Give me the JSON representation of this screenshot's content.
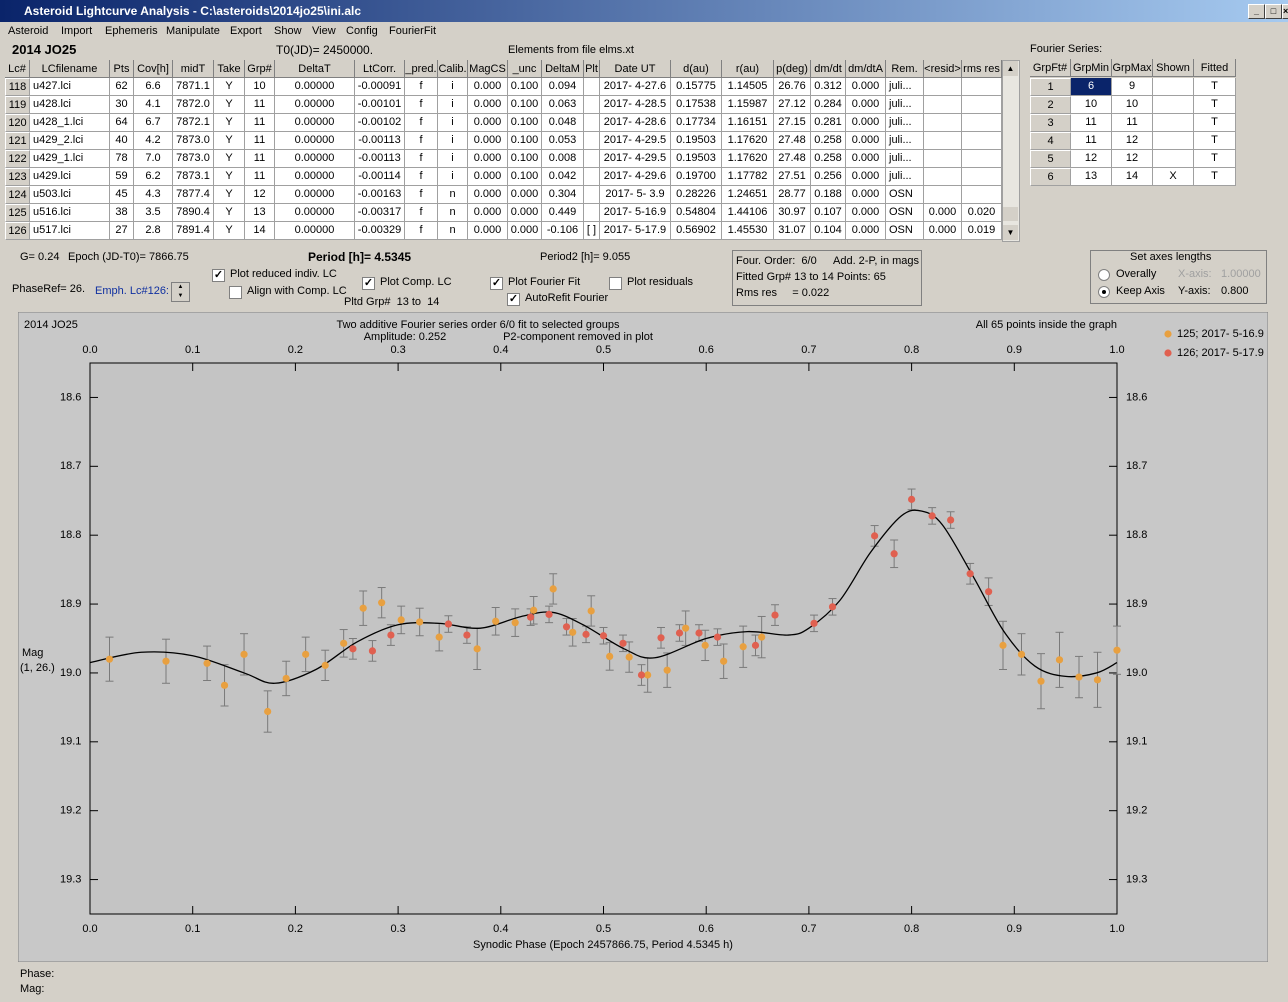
{
  "window": {
    "title": "Asteroid Lightcurve Analysis - C:\\asteroids\\2014jo25\\ini.alc"
  },
  "menu": [
    "Asteroid",
    "Import",
    "Ephemeris",
    "Manipulate",
    "Export",
    "Show",
    "View",
    "Config",
    "FourierFit"
  ],
  "header": {
    "object": "2014 JO25",
    "t0": "T0(JD)= 2450000.",
    "elements": "Elements from file elms.xt",
    "fourier_title": "Fourier Series:"
  },
  "table": {
    "columns": [
      "Lc#",
      "LCfilename",
      "Pts",
      "Cov[h]",
      "midT",
      "Take",
      "Grp#",
      "DeltaT",
      "LtCorr.",
      "_pred.",
      "Calib.",
      "MagCS",
      "_unc",
      "DeltaM",
      "Plt",
      "Date UT",
      "d(au)",
      "r(au)",
      "p(deg)",
      "dm/dt",
      "dm/dtA",
      "Rem.",
      "<resid>",
      "rms res"
    ],
    "rows": [
      [
        "118",
        "u427.lci",
        "62",
        "6.6",
        "7871.1",
        "Y",
        "10",
        "0.00000",
        "-0.00091",
        "f",
        "i",
        "0.000",
        "0.100",
        "0.094",
        null,
        "2017- 4-27.6",
        "0.15775",
        "1.14505",
        "26.76",
        "0.312",
        "0.000",
        "juli...",
        null,
        null
      ],
      [
        "119",
        "u428.lci",
        "30",
        "4.1",
        "7872.0",
        "Y",
        "11",
        "0.00000",
        "-0.00101",
        "f",
        "i",
        "0.000",
        "0.100",
        "0.063",
        null,
        "2017- 4-28.5",
        "0.17538",
        "1.15987",
        "27.12",
        "0.284",
        "0.000",
        "juli...",
        null,
        null
      ],
      [
        "120",
        "u428_1.lci",
        "64",
        "6.7",
        "7872.1",
        "Y",
        "11",
        "0.00000",
        "-0.00102",
        "f",
        "i",
        "0.000",
        "0.100",
        "0.048",
        null,
        "2017- 4-28.6",
        "0.17734",
        "1.16151",
        "27.15",
        "0.281",
        "0.000",
        "juli...",
        null,
        null
      ],
      [
        "121",
        "u429_2.lci",
        "40",
        "4.2",
        "7873.0",
        "Y",
        "11",
        "0.00000",
        "-0.00113",
        "f",
        "i",
        "0.000",
        "0.100",
        "0.053",
        null,
        "2017- 4-29.5",
        "0.19503",
        "1.17620",
        "27.48",
        "0.258",
        "0.000",
        "juli...",
        null,
        null
      ],
      [
        "122",
        "u429_1.lci",
        "78",
        "7.0",
        "7873.0",
        "Y",
        "11",
        "0.00000",
        "-0.00113",
        "f",
        "i",
        "0.000",
        "0.100",
        "0.008",
        null,
        "2017- 4-29.5",
        "0.19503",
        "1.17620",
        "27.48",
        "0.258",
        "0.000",
        "juli...",
        null,
        null
      ],
      [
        "123",
        "u429.lci",
        "59",
        "6.2",
        "7873.1",
        "Y",
        "11",
        "0.00000",
        "-0.00114",
        "f",
        "i",
        "0.000",
        "0.100",
        "0.042",
        null,
        "2017- 4-29.6",
        "0.19700",
        "1.17782",
        "27.51",
        "0.256",
        "0.000",
        "juli...",
        null,
        null
      ],
      [
        "124",
        "u503.lci",
        "45",
        "4.3",
        "7877.4",
        "Y",
        "12",
        "0.00000",
        "-0.00163",
        "f",
        "n",
        "0.000",
        "0.000",
        "0.304",
        null,
        "2017- 5- 3.9",
        "0.28226",
        "1.24651",
        "28.77",
        "0.188",
        "0.000",
        "OSN",
        null,
        null
      ],
      [
        "125",
        "u516.lci",
        "38",
        "3.5",
        "7890.4",
        "Y",
        "13",
        "0.00000",
        "-0.00317",
        "f",
        "n",
        "0.000",
        "0.000",
        "0.449",
        null,
        "2017- 5-16.9",
        "0.54804",
        "1.44106",
        "30.97",
        "0.107",
        "0.000",
        "OSN",
        "0.000",
        "0.020"
      ],
      [
        "126",
        "u517.lci",
        "27",
        "2.8",
        "7891.4",
        "Y",
        "14",
        "0.00000",
        "-0.00329",
        "f",
        "n",
        "0.000",
        "0.000",
        "-0.106",
        "[ ]",
        "2017- 5-17.9",
        "0.56902",
        "1.45530",
        "31.07",
        "0.104",
        "0.000",
        "OSN",
        "0.000",
        "0.019"
      ]
    ]
  },
  "fourier_table": {
    "columns": [
      "GrpFt#",
      "GrpMin",
      "GrpMax",
      "Shown",
      "Fitted"
    ],
    "rows": [
      [
        "1",
        "6",
        "9",
        null,
        "T"
      ],
      [
        "2",
        "10",
        "10",
        null,
        "T"
      ],
      [
        "3",
        "11",
        "11",
        null,
        "T"
      ],
      [
        "4",
        "11",
        "12",
        null,
        "T"
      ],
      [
        "5",
        "12",
        "12",
        null,
        "T"
      ],
      [
        "6",
        "13",
        "14",
        "X",
        "T"
      ]
    ]
  },
  "controls": {
    "g": "G= 0.24",
    "epoch": "Epoch (JD-T0)= 7866.75",
    "period": "Period [h]= 4.5345",
    "period2": "Period2 [h]= 9.055",
    "phaseref": "PhaseRef= 26.",
    "emph": "Emph. Lc#126:",
    "plot_reduced": {
      "label": "Plot reduced indiv. LC",
      "checked": true
    },
    "align": {
      "label": "Align with Comp. LC",
      "checked": false
    },
    "plot_comp": {
      "label": "Plot Comp. LC",
      "checked": true
    },
    "pltd_grp": "Pltd Grp#  13 to  14",
    "plot_fourier": {
      "label": "Plot Fourier Fit",
      "checked": true
    },
    "autorefit": {
      "label": "AutoRefit Fourier",
      "checked": true
    },
    "plot_residuals": {
      "label": "Plot residuals",
      "checked": false
    },
    "info": [
      "Four. Order:  6/0",
      "Add. 2-P, in mags",
      "Fitted Grp# 13 to 14 Points: 65",
      "Rms res     = 0.022"
    ],
    "axes": {
      "title": "Set axes lengths",
      "overally": {
        "label": "Overally",
        "checked": false
      },
      "keep": {
        "label": "Keep Axis",
        "checked": true
      },
      "x_label": "X-axis:",
      "x_value": "1.00000",
      "y_label": "Y-axis:",
      "y_value": "0.800"
    }
  },
  "chart_data": {
    "type": "scatter",
    "object": "2014 JO25",
    "title": "Two additive Fourier series order 6/0 fit to selected groups",
    "amplitude": "Amplitude: 0.252",
    "note": "P2-component removed in plot",
    "count_note": "All 65 points inside the graph",
    "ylabel": [
      "Mag",
      "(1, 26.)"
    ],
    "xlabel": "Synodic Phase (Epoch 2457866.75, Period 4.5345 h)",
    "xlim": [
      0,
      1
    ],
    "ylim": [
      18.55,
      19.35
    ],
    "y_inverted": true,
    "xticks": [
      {
        "value": 0,
        "label": "0.0"
      },
      0.1,
      0.2,
      0.3,
      0.4,
      0.5,
      0.6,
      0.7,
      0.8,
      0.9,
      {
        "value": 1,
        "label": "1.0"
      }
    ],
    "yticks": [
      18.6,
      18.7,
      18.8,
      18.9,
      {
        "value": 19,
        "label": "19.0"
      },
      19.1,
      19.2,
      19.3
    ],
    "series": [
      {
        "name": "125; 2017- 5-16.9",
        "color": "#e8a040",
        "x": [
          0.019,
          0.074,
          0.114,
          0.131,
          0.15,
          0.173,
          0.191,
          0.21,
          0.229,
          0.247,
          0.266,
          0.284,
          0.303,
          0.321,
          0.34,
          0.377,
          0.395,
          0.414,
          0.432,
          0.451,
          0.47,
          0.488,
          0.506,
          0.525,
          0.543,
          0.562,
          0.58,
          0.599,
          0.617,
          0.636,
          0.654,
          0.889,
          0.907,
          0.926,
          0.944,
          0.963,
          0.981,
          1.0
        ],
        "values": [
          18.98,
          18.983,
          18.986,
          19.018,
          18.973,
          19.056,
          19.008,
          18.973,
          18.989,
          18.957,
          18.906,
          18.898,
          18.923,
          18.926,
          18.948,
          18.965,
          18.925,
          18.927,
          18.909,
          18.878,
          18.941,
          18.91,
          18.976,
          18.977,
          19.003,
          18.996,
          18.935,
          18.96,
          18.983,
          18.962,
          18.948,
          18.96,
          18.973,
          19.012,
          18.981,
          19.006,
          19.01,
          18.967
        ],
        "errors": [
          0.032,
          0.032,
          0.025,
          0.03,
          0.03,
          0.03,
          0.025,
          0.025,
          0.022,
          0.02,
          0.025,
          0.022,
          0.02,
          0.02,
          0.02,
          0.03,
          0.02,
          0.02,
          0.02,
          0.022,
          0.02,
          0.022,
          0.02,
          0.022,
          0.025,
          0.025,
          0.025,
          0.022,
          0.025,
          0.03,
          0.03,
          0.035,
          0.03,
          0.04,
          0.04,
          0.03,
          0.04,
          0.035
        ]
      },
      {
        "name": "126; 2017- 5-17.9",
        "color": "#e06050",
        "x": [
          0.256,
          0.275,
          0.293,
          0.349,
          0.367,
          0.429,
          0.447,
          0.464,
          0.483,
          0.5,
          0.519,
          0.537,
          0.556,
          0.574,
          0.593,
          0.611,
          0.648,
          0.667,
          0.705,
          0.723,
          0.764,
          0.783,
          0.8,
          0.82,
          0.838,
          0.857,
          0.875
        ],
        "values": [
          18.965,
          18.968,
          18.945,
          18.929,
          18.945,
          18.919,
          18.915,
          18.933,
          18.944,
          18.946,
          18.957,
          19.003,
          18.949,
          18.942,
          18.942,
          18.948,
          18.96,
          18.916,
          18.928,
          18.904,
          18.801,
          18.827,
          18.748,
          18.772,
          18.778,
          18.856,
          18.882
        ],
        "errors": [
          0.015,
          0.015,
          0.015,
          0.012,
          0.012,
          0.012,
          0.012,
          0.012,
          0.012,
          0.012,
          0.012,
          0.015,
          0.015,
          0.012,
          0.012,
          0.012,
          0.015,
          0.015,
          0.012,
          0.012,
          0.015,
          0.02,
          0.015,
          0.012,
          0.012,
          0.015,
          0.02
        ]
      }
    ],
    "fit": {
      "color": "#000000",
      "x": [
        0,
        0.05,
        0.1,
        0.15,
        0.18,
        0.22,
        0.26,
        0.3,
        0.34,
        0.38,
        0.42,
        0.45,
        0.48,
        0.52,
        0.55,
        0.6,
        0.64,
        0.68,
        0.7,
        0.73,
        0.76,
        0.79,
        0.81,
        0.83,
        0.86,
        0.89,
        0.92,
        0.95,
        0.98,
        1
      ],
      "values": [
        18.985,
        18.97,
        18.975,
        19.0,
        19.015,
        18.995,
        18.955,
        18.93,
        18.928,
        18.935,
        18.918,
        18.912,
        18.93,
        18.965,
        18.978,
        18.95,
        18.94,
        18.945,
        18.935,
        18.895,
        18.825,
        18.772,
        18.765,
        18.785,
        18.86,
        18.94,
        18.99,
        19.005,
        19.0,
        18.985
      ]
    }
  },
  "status": {
    "phase": "Phase:",
    "mag": "Mag:"
  }
}
